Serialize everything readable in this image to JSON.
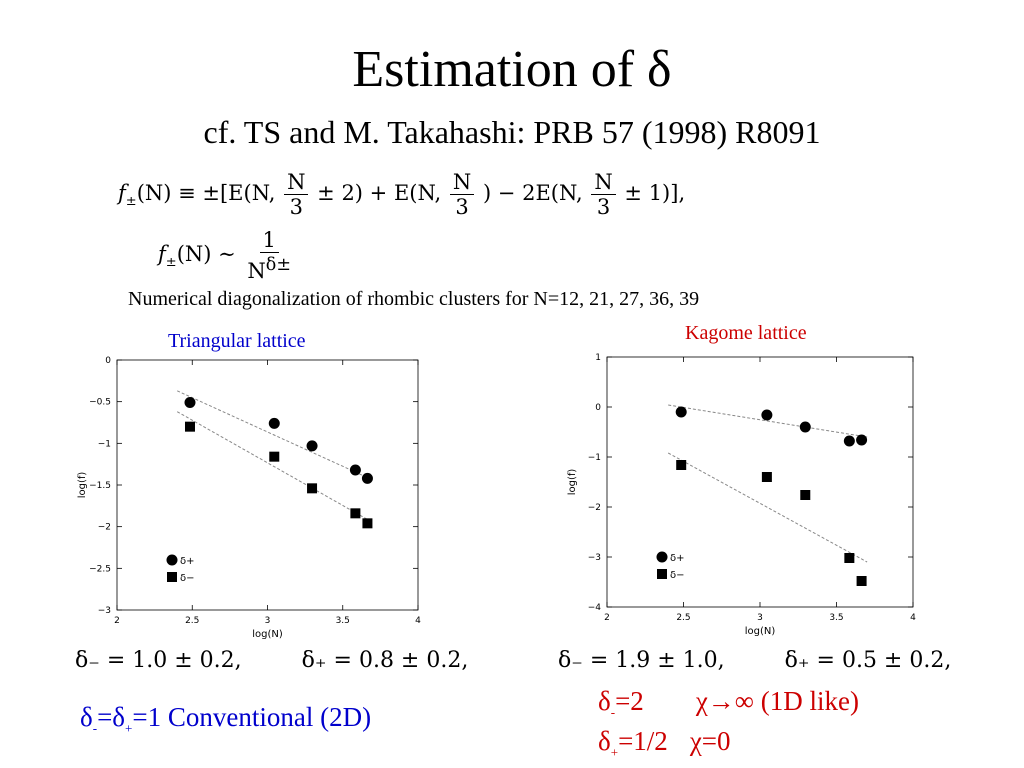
{
  "slide": {
    "title": "Estimation of δ",
    "subtitle": "cf. TS and M. Takahashi: PRB 57 (1998) R8091",
    "numerics_note": "Numerical diagonalization of rhombic clusters for N=12, 21, 27, 36, 39"
  },
  "equations": {
    "eq1_lhs": "f",
    "eq1_lhs_sub": "±",
    "eq1_a": "(N) ≡ ±[E(N,",
    "eq1_frac_num": "N",
    "eq1_frac_den": "3",
    "eq1_b": "± 2) + E(N,",
    "eq1_c": ") − 2E(N,",
    "eq1_d": "± 1)],",
    "eq2_lhs": "f",
    "eq2_lhs_sub": "±",
    "eq2_a": "(N) ∼",
    "eq2_num": "1",
    "eq2_den_base": "N",
    "eq2_den_exp": "δ±"
  },
  "plots": {
    "triangular_label": "Triangular lattice",
    "kagome_label": "Kagome lattice",
    "ylabel": "log(f)",
    "xlabel": "log(N)",
    "legend_plus": "δ+",
    "legend_minus": "δ−"
  },
  "results": {
    "triangular": "δ₋ = 1.0 ± 0.2,",
    "triangular_plus": "δ₊ = 0.8 ± 0.2,",
    "kagome": "δ₋ = 1.9 ± 1.0,",
    "kagome_plus": "δ₊ = 0.5 ± 0.2,"
  },
  "conclusions": {
    "left": "=1   Conventional  (2D)",
    "right_line1_a": "=2",
    "right_line1_b": "χ→∞  (1D like)",
    "right_line2_a": "=1/2",
    "right_line2_b": "χ=0"
  },
  "colors": {
    "blue": "#0000cc",
    "red": "#cc0000"
  },
  "chart_data": [
    {
      "type": "scatter",
      "title": "Triangular lattice",
      "xlabel": "log(N)",
      "ylabel": "log(f)",
      "xlim": [
        2,
        4
      ],
      "ylim": [
        -3,
        0
      ],
      "xticks": [
        2,
        2.5,
        3,
        3.5,
        4
      ],
      "xticklabels": [
        "2",
        "2.5",
        "3",
        "3.5",
        "4"
      ],
      "yticks": [
        0,
        -0.5,
        -1,
        -1.5,
        -2,
        -2.5,
        -3
      ],
      "yticklabels": [
        "0",
        "−0.5",
        "−1",
        "−1.5",
        "−2",
        "−2.5",
        "−3"
      ],
      "series": [
        {
          "name": "δ+",
          "marker": "circle",
          "x": [
            2.485,
            3.045,
            3.296,
            3.584,
            3.664
          ],
          "y": [
            -0.51,
            -0.76,
            -1.03,
            -1.32,
            -1.42
          ],
          "fit": [
            [
              2.4,
              -0.37
            ],
            [
              3.7,
              -1.44
            ]
          ]
        },
        {
          "name": "δ−",
          "marker": "square",
          "x": [
            2.485,
            3.045,
            3.296,
            3.584,
            3.664
          ],
          "y": [
            -0.8,
            -1.16,
            -1.54,
            -1.84,
            -1.96
          ],
          "fit": [
            [
              2.4,
              -0.62
            ],
            [
              3.7,
              -1.95
            ]
          ]
        }
      ]
    },
    {
      "type": "scatter",
      "title": "Kagome lattice",
      "xlabel": "log(N)",
      "ylabel": "log(f)",
      "xlim": [
        2,
        4
      ],
      "ylim": [
        -4,
        1
      ],
      "xticks": [
        2,
        2.5,
        3,
        3.5,
        4
      ],
      "xticklabels": [
        "2",
        "2.5",
        "3",
        "3.5",
        "4"
      ],
      "yticks": [
        1,
        0,
        -1,
        -2,
        -3,
        -4
      ],
      "yticklabels": [
        "1",
        "0",
        "−1",
        "−2",
        "−3",
        "−4"
      ],
      "series": [
        {
          "name": "δ+",
          "marker": "circle",
          "x": [
            2.485,
            3.045,
            3.296,
            3.584,
            3.664
          ],
          "y": [
            -0.1,
            -0.16,
            -0.4,
            -0.68,
            -0.66
          ],
          "fit": [
            [
              2.4,
              0.04
            ],
            [
              3.7,
              -0.6
            ]
          ]
        },
        {
          "name": "δ−",
          "marker": "square",
          "x": [
            2.485,
            3.045,
            3.296,
            3.584,
            3.664
          ],
          "y": [
            -1.16,
            -1.4,
            -1.76,
            -3.02,
            -3.48
          ],
          "fit": [
            [
              2.4,
              -0.92
            ],
            [
              3.7,
              -3.1
            ]
          ]
        }
      ]
    }
  ]
}
